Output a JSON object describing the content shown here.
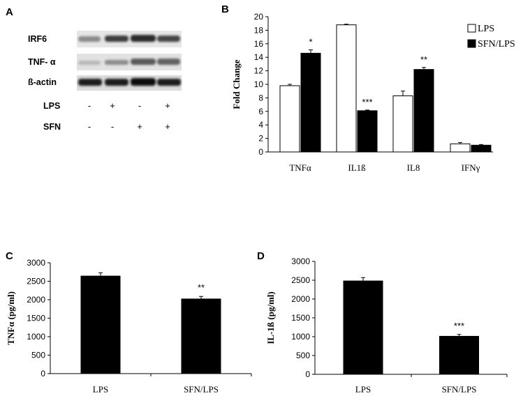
{
  "panel_labels": {
    "a": "A",
    "b": "B",
    "c": "C",
    "d": "D"
  },
  "blot": {
    "rows": [
      {
        "label": "IRF6"
      },
      {
        "label": "TNF- α"
      },
      {
        "label": "ß-actin"
      }
    ],
    "conditions": [
      {
        "label": "LPS",
        "signs": [
          "-",
          "+",
          "-",
          "+"
        ]
      },
      {
        "label": "SFN",
        "signs": [
          "-",
          "-",
          "+",
          "+"
        ]
      }
    ]
  },
  "chart_data": [
    {
      "id": "B",
      "type": "bar",
      "categories": [
        "TNFα",
        "IL1ß",
        "IL8",
        "IFNγ"
      ],
      "series": [
        {
          "name": "LPS",
          "color": "#ffffff",
          "values": [
            9.8,
            18.8,
            8.3,
            1.2
          ],
          "errors": [
            0.2,
            0.1,
            0.7,
            0.2
          ]
        },
        {
          "name": "SFN/LPS",
          "color": "#000000",
          "values": [
            14.6,
            6.1,
            12.2,
            1.0
          ],
          "errors": [
            0.5,
            0.1,
            0.3,
            0.1
          ]
        }
      ],
      "significance": [
        "*",
        "***",
        "**",
        ""
      ],
      "ylabel": "Fold Change",
      "ylim": [
        0,
        20
      ],
      "yticks": [
        0,
        2,
        4,
        6,
        8,
        10,
        12,
        14,
        16,
        18,
        20
      ],
      "legend_position": "top-right",
      "grid": false
    },
    {
      "id": "C",
      "type": "bar",
      "categories": [
        "LPS",
        "SFN/LPS"
      ],
      "values": [
        2640,
        2020
      ],
      "errors": [
        90,
        70
      ],
      "significance": [
        "",
        "**"
      ],
      "ylabel": "TNFα (pg/ml)",
      "ylim": [
        0,
        3000
      ],
      "yticks": [
        0,
        500,
        1000,
        1500,
        2000,
        2500,
        3000
      ],
      "color": "#000000",
      "grid": false
    },
    {
      "id": "D",
      "type": "bar",
      "categories": [
        "LPS",
        "SFN/LPS"
      ],
      "values": [
        2480,
        1010
      ],
      "errors": [
        90,
        50
      ],
      "significance": [
        "",
        "***"
      ],
      "ylabel": "IL-1ß (pg/ml)",
      "ylim": [
        0,
        3000
      ],
      "yticks": [
        0,
        500,
        1000,
        1500,
        2000,
        2500,
        3000
      ],
      "color": "#000000",
      "grid": false
    }
  ]
}
